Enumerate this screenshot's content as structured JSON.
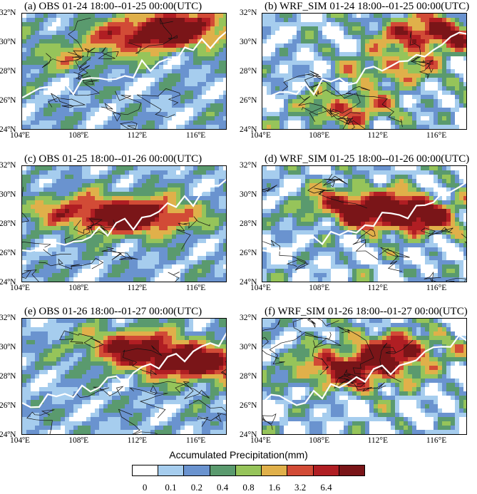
{
  "panels": [
    {
      "id": "a",
      "title": "(a) OBS 01-24 18:00--01-25 00:00(UTC)",
      "style": "obs",
      "seed": 11,
      "max": [
        [
          0.78,
          0.1,
          1.0
        ],
        [
          0.55,
          0.18,
          0.75
        ],
        [
          0.18,
          0.35,
          0.35
        ]
      ]
    },
    {
      "id": "b",
      "title": "(b) WRF_SIM 01-24 18:00--01-25 00:00(UTC)",
      "style": "sim",
      "seed": 23,
      "max": [
        [
          0.8,
          0.15,
          1.0
        ],
        [
          0.4,
          0.8,
          0.8
        ],
        [
          0.6,
          0.45,
          0.6
        ]
      ]
    },
    {
      "id": "c",
      "title": "(c) OBS 01-25 18:00--01-26 00:00(UTC)",
      "style": "obs",
      "seed": 37,
      "max": [
        [
          0.45,
          0.42,
          0.75
        ],
        [
          0.62,
          0.4,
          0.7
        ],
        [
          0.18,
          0.35,
          0.45
        ]
      ]
    },
    {
      "id": "d",
      "title": "(d) WRF_SIM 01-25 18:00--01-26 00:00(UTC)",
      "style": "sim",
      "seed": 41,
      "max": [
        [
          0.55,
          0.35,
          0.9
        ],
        [
          0.72,
          0.42,
          0.8
        ],
        [
          0.35,
          0.3,
          0.6
        ]
      ]
    },
    {
      "id": "e",
      "title": "(e) OBS 01-26 18:00--01-27 00:00(UTC)",
      "style": "obs",
      "seed": 53,
      "max": [
        [
          0.52,
          0.22,
          0.9
        ],
        [
          0.75,
          0.35,
          0.75
        ],
        [
          0.95,
          0.38,
          0.6
        ]
      ]
    },
    {
      "id": "f",
      "title": "(f) WRF_SIM 01-26 18:00--01-27 00:00(UTC)",
      "style": "sim",
      "seed": 67,
      "max": [
        [
          0.62,
          0.25,
          0.95
        ],
        [
          0.45,
          0.45,
          0.75
        ],
        [
          0.3,
          0.4,
          0.6
        ]
      ]
    }
  ],
  "legend": {
    "title": "Accumulated Precipitation(mm)",
    "colors": [
      "#ffffff",
      "#a6cdee",
      "#6a93cf",
      "#5a9a6e",
      "#96c45a",
      "#e0b04a",
      "#d24b36",
      "#b01e23",
      "#7a1518"
    ],
    "ticks": [
      "0",
      "0.1",
      "0.2",
      "0.4",
      "0.8",
      "1.6",
      "3.2",
      "6.4"
    ]
  },
  "chart_data": {
    "type": "heatmap",
    "title": "Accumulated Precipitation(mm)",
    "xlim": [
      104,
      118
    ],
    "ylim": [
      24,
      32
    ],
    "x_ticks": [
      "104ºE",
      "108ºE",
      "112ºE",
      "116ºE"
    ],
    "y_ticks": [
      "24ºN",
      "26ºN",
      "28ºN",
      "30ºN",
      "32ºN"
    ],
    "x_ticks_sim": [
      "104°E",
      "108°E",
      "112°E",
      "116°E"
    ],
    "y_ticks_sim": [
      "24°N",
      "26°N",
      "28°N",
      "30°N",
      "32°N"
    ],
    "levels": [
      0,
      0.1,
      0.2,
      0.4,
      0.8,
      1.6,
      3.2,
      6.4
    ]
  }
}
